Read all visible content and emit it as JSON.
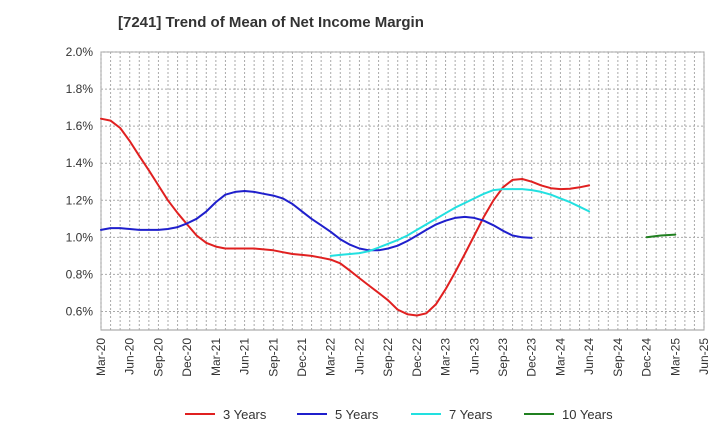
{
  "chart_data": {
    "type": "line",
    "title": "[7241]  Trend of Mean of Net Income Margin",
    "xlabel": "",
    "ylabel": "",
    "x_ticks": [
      "Mar-20",
      "Jun-20",
      "Sep-20",
      "Dec-20",
      "Mar-21",
      "Jun-21",
      "Sep-21",
      "Dec-21",
      "Mar-22",
      "Jun-22",
      "Sep-22",
      "Dec-22",
      "Mar-23",
      "Jun-23",
      "Sep-23",
      "Dec-23",
      "Mar-24",
      "Jun-24",
      "Sep-24",
      "Dec-24",
      "Mar-25",
      "Jun-25"
    ],
    "y_ticks": [
      "0.6%",
      "0.8%",
      "1.0%",
      "1.2%",
      "1.4%",
      "1.6%",
      "1.8%",
      "2.0%"
    ],
    "ylim": [
      0.5,
      2.0
    ],
    "grid": true,
    "legend_position": "bottom",
    "series": [
      {
        "name": "3 Years",
        "color": "#e02020",
        "points": [
          [
            0,
            1.64
          ],
          [
            0.33,
            1.63
          ],
          [
            0.67,
            1.59
          ],
          [
            1,
            1.52
          ],
          [
            1.33,
            1.44
          ],
          [
            1.67,
            1.36
          ],
          [
            2,
            1.28
          ],
          [
            2.33,
            1.2
          ],
          [
            2.67,
            1.13
          ],
          [
            3,
            1.07
          ],
          [
            3.33,
            1.01
          ],
          [
            3.67,
            0.97
          ],
          [
            4,
            0.95
          ],
          [
            4.33,
            0.94
          ],
          [
            4.67,
            0.94
          ],
          [
            5,
            0.94
          ],
          [
            5.33,
            0.94
          ],
          [
            5.67,
            0.935
          ],
          [
            6,
            0.93
          ],
          [
            6.33,
            0.92
          ],
          [
            6.67,
            0.91
          ],
          [
            7,
            0.905
          ],
          [
            7.33,
            0.9
          ],
          [
            7.67,
            0.89
          ],
          [
            8,
            0.88
          ],
          [
            8.33,
            0.86
          ],
          [
            8.67,
            0.82
          ],
          [
            9,
            0.78
          ],
          [
            9.33,
            0.74
          ],
          [
            9.67,
            0.7
          ],
          [
            10,
            0.66
          ],
          [
            10.33,
            0.61
          ],
          [
            10.67,
            0.585
          ],
          [
            11,
            0.578
          ],
          [
            11.33,
            0.59
          ],
          [
            11.67,
            0.64
          ],
          [
            12,
            0.72
          ],
          [
            12.33,
            0.81
          ],
          [
            12.67,
            0.91
          ],
          [
            13,
            1.01
          ],
          [
            13.33,
            1.11
          ],
          [
            13.67,
            1.2
          ],
          [
            14,
            1.27
          ],
          [
            14.33,
            1.31
          ],
          [
            14.67,
            1.315
          ],
          [
            15,
            1.3
          ],
          [
            15.33,
            1.28
          ],
          [
            15.67,
            1.265
          ],
          [
            16,
            1.26
          ],
          [
            16.33,
            1.262
          ],
          [
            16.67,
            1.27
          ],
          [
            17,
            1.28
          ]
        ]
      },
      {
        "name": "5 Years",
        "color": "#1f1fcc",
        "points": [
          [
            0,
            1.04
          ],
          [
            0.33,
            1.05
          ],
          [
            0.67,
            1.05
          ],
          [
            1,
            1.045
          ],
          [
            1.33,
            1.04
          ],
          [
            1.67,
            1.04
          ],
          [
            2,
            1.04
          ],
          [
            2.33,
            1.045
          ],
          [
            2.67,
            1.055
          ],
          [
            3,
            1.075
          ],
          [
            3.33,
            1.1
          ],
          [
            3.67,
            1.14
          ],
          [
            4,
            1.19
          ],
          [
            4.33,
            1.23
          ],
          [
            4.67,
            1.245
          ],
          [
            5,
            1.25
          ],
          [
            5.33,
            1.245
          ],
          [
            5.67,
            1.235
          ],
          [
            6,
            1.225
          ],
          [
            6.33,
            1.21
          ],
          [
            6.67,
            1.18
          ],
          [
            7,
            1.14
          ],
          [
            7.33,
            1.1
          ],
          [
            7.67,
            1.065
          ],
          [
            8,
            1.03
          ],
          [
            8.33,
            0.99
          ],
          [
            8.67,
            0.96
          ],
          [
            9,
            0.94
          ],
          [
            9.33,
            0.93
          ],
          [
            9.67,
            0.93
          ],
          [
            10,
            0.94
          ],
          [
            10.33,
            0.955
          ],
          [
            10.67,
            0.98
          ],
          [
            11,
            1.01
          ],
          [
            11.33,
            1.04
          ],
          [
            11.67,
            1.07
          ],
          [
            12,
            1.09
          ],
          [
            12.33,
            1.105
          ],
          [
            12.67,
            1.11
          ],
          [
            13,
            1.105
          ],
          [
            13.33,
            1.09
          ],
          [
            13.67,
            1.065
          ],
          [
            14,
            1.035
          ],
          [
            14.33,
            1.01
          ],
          [
            14.67,
            1.0
          ],
          [
            15,
            0.997
          ]
        ]
      },
      {
        "name": "7 Years",
        "color": "#22e0e0",
        "points": [
          [
            0,
            0.9
          ],
          [
            0.33,
            0.905
          ],
          [
            0.67,
            0.91
          ],
          [
            1,
            0.915
          ],
          [
            1.33,
            0.925
          ],
          [
            1.67,
            0.945
          ],
          [
            2,
            0.965
          ],
          [
            2.33,
            0.985
          ],
          [
            2.67,
            1.01
          ],
          [
            3,
            1.04
          ],
          [
            3.33,
            1.07
          ],
          [
            3.67,
            1.1
          ],
          [
            4,
            1.13
          ],
          [
            4.33,
            1.16
          ],
          [
            4.67,
            1.185
          ],
          [
            5,
            1.21
          ],
          [
            5.33,
            1.235
          ],
          [
            5.67,
            1.255
          ],
          [
            6,
            1.26
          ],
          [
            6.33,
            1.26
          ],
          [
            6.67,
            1.26
          ],
          [
            7,
            1.255
          ],
          [
            7.33,
            1.245
          ],
          [
            7.67,
            1.23
          ],
          [
            8,
            1.21
          ],
          [
            8.33,
            1.19
          ],
          [
            8.67,
            1.165
          ],
          [
            9,
            1.14
          ]
        ]
      },
      {
        "name": "10 Years",
        "color": "#208020",
        "points": [
          [
            0,
            1.0
          ],
          [
            0.5,
            1.01
          ],
          [
            1,
            1.015
          ]
        ]
      }
    ]
  }
}
